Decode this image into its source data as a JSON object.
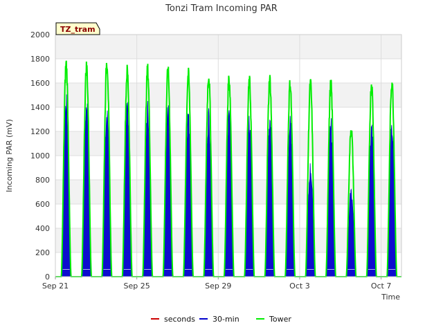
{
  "chart_data": {
    "type": "line",
    "title": "Tonzi Tram Incoming PAR",
    "xlabel": "Time",
    "ylabel": "Incoming PAR (mV)",
    "site_tag": "TZ_tram",
    "ylim": [
      0,
      2000
    ],
    "yticks": [
      0,
      200,
      400,
      600,
      800,
      1000,
      1200,
      1400,
      1600,
      1800,
      2000
    ],
    "xlim": [
      "2023-09-21",
      "2023-10-08"
    ],
    "xticks": [
      {
        "label": "Sep 21",
        "date": "2023-09-21"
      },
      {
        "label": "Sep 25",
        "date": "2023-09-25"
      },
      {
        "label": "Sep 29",
        "date": "2023-09-29"
      },
      {
        "label": "Oct 3",
        "date": "2023-10-03"
      },
      {
        "label": "Oct 7",
        "date": "2023-10-07"
      }
    ],
    "grid": true,
    "legend_position": "bottom",
    "series": [
      {
        "name": "seconds",
        "color": "#cc0000",
        "values": []
      },
      {
        "name": "30-min",
        "color": "#0000cc",
        "days": [
          "2023-09-21",
          "2023-09-22",
          "2023-09-23",
          "2023-09-24",
          "2023-09-25",
          "2023-09-26",
          "2023-09-27",
          "2023-09-28",
          "2023-09-29",
          "2023-09-30",
          "2023-10-01",
          "2023-10-02",
          "2023-10-03",
          "2023-10-04",
          "2023-10-05",
          "2023-10-06",
          "2023-10-07"
        ],
        "daily_peak": [
          1530,
          1500,
          1480,
          1500,
          1460,
          1470,
          1420,
          1420,
          1410,
          1340,
          1380,
          1340,
          960,
          1330,
          750,
          1290,
          1360
        ]
      },
      {
        "name": "Tower",
        "color": "#00ee00",
        "days": [
          "2023-09-21",
          "2023-09-22",
          "2023-09-23",
          "2023-09-24",
          "2023-09-25",
          "2023-09-26",
          "2023-09-27",
          "2023-09-28",
          "2023-09-29",
          "2023-09-30",
          "2023-10-01",
          "2023-10-02",
          "2023-10-03",
          "2023-10-04",
          "2023-10-05",
          "2023-10-06",
          "2023-10-07"
        ],
        "daily_peak": [
          1820,
          1800,
          1840,
          1760,
          1770,
          1760,
          1730,
          1720,
          1700,
          1670,
          1690,
          1650,
          1650,
          1650,
          1270,
          1650,
          1670
        ]
      }
    ]
  }
}
